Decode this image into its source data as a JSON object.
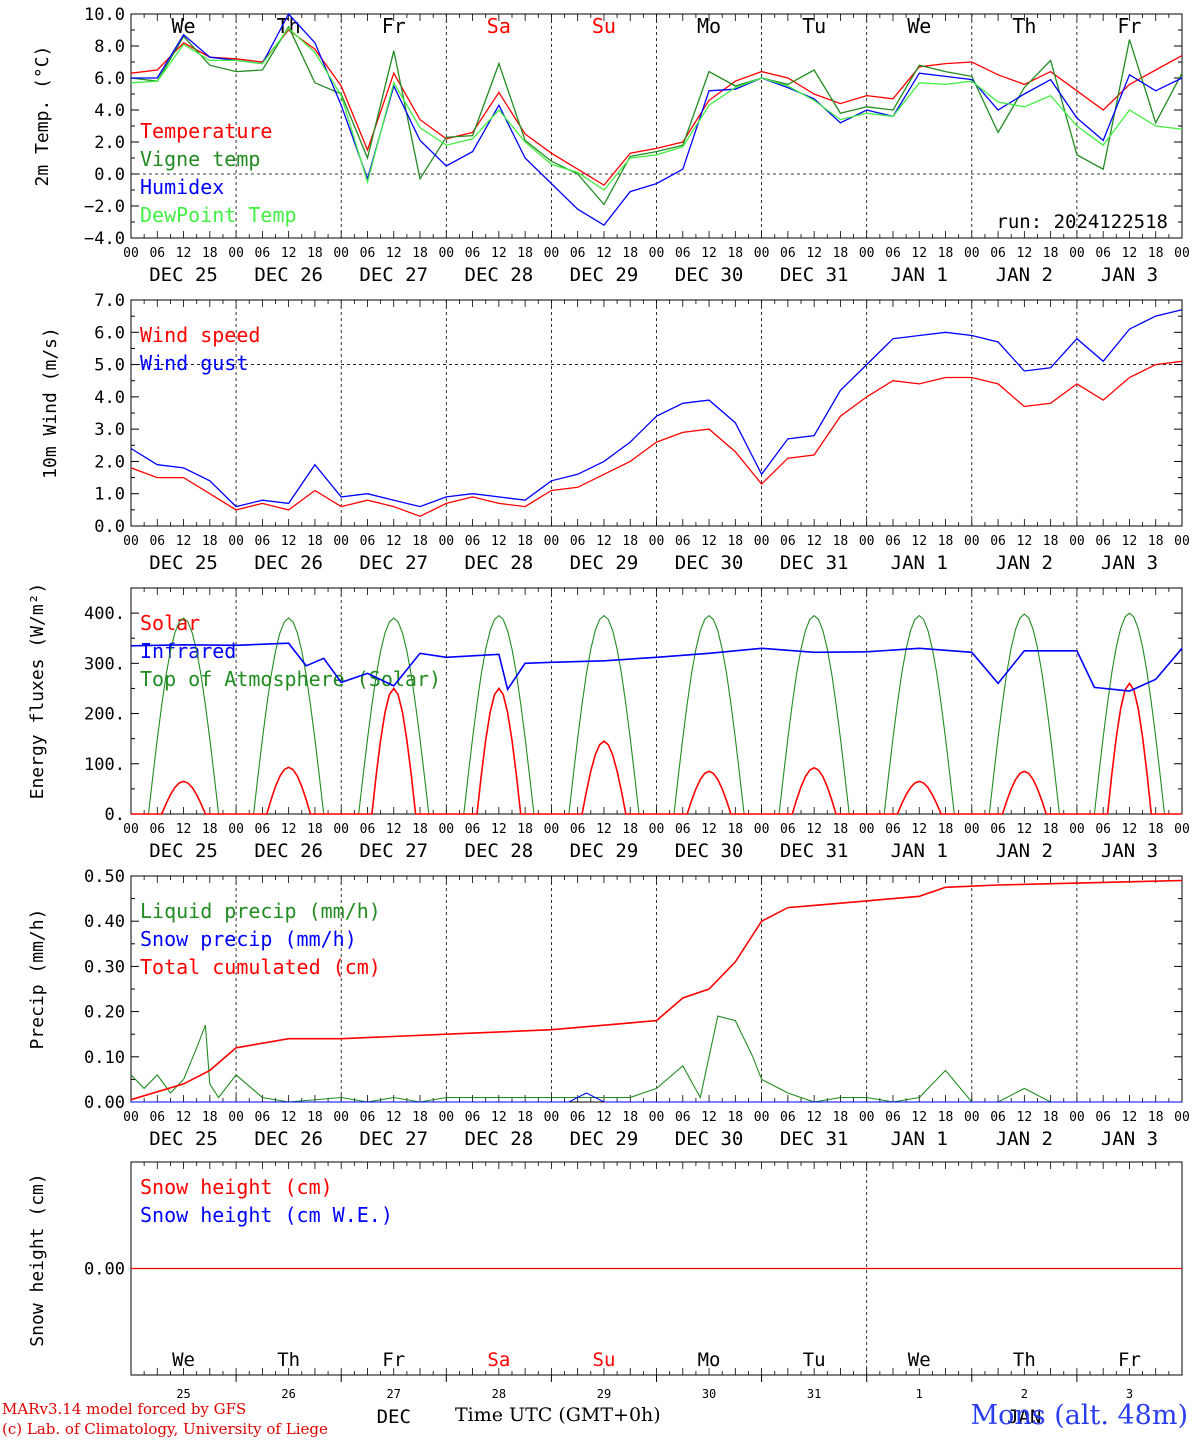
{
  "chart_data": [
    {
      "type": "line",
      "ylabel": "2m Temp. (°C)",
      "ylim": [
        -4,
        10
      ],
      "yticks": [
        "10.0",
        "8.0",
        "6.0",
        "4.0",
        "2.0",
        "0.0",
        "−2.0",
        "−4.0"
      ],
      "top_day_labels": [
        {
          "text": "We",
          "color": "#000000"
        },
        {
          "text": "Th",
          "color": "#000000"
        },
        {
          "text": "Fr",
          "color": "#000000"
        },
        {
          "text": "Sa",
          "color": "#ff0000"
        },
        {
          "text": "Su",
          "color": "#ff0000"
        },
        {
          "text": "Mo",
          "color": "#000000"
        },
        {
          "text": "Tu",
          "color": "#000000"
        },
        {
          "text": "We",
          "color": "#000000"
        },
        {
          "text": "Th",
          "color": "#000000"
        },
        {
          "text": "Fr",
          "color": "#000000"
        }
      ],
      "annotation": "run: 2024122518",
      "x_hours": [
        0,
        6,
        12,
        18,
        24,
        30,
        36,
        42,
        48,
        54,
        60,
        66,
        72,
        78,
        84,
        90,
        96,
        102,
        108,
        114,
        120,
        126,
        132,
        138,
        144,
        150,
        156,
        162,
        168,
        174,
        180,
        186,
        192,
        198,
        204,
        210,
        216,
        222,
        228,
        234,
        240
      ],
      "series": [
        {
          "name": "Temperature",
          "color": "#ff0000",
          "values": [
            6.3,
            6.5,
            8.2,
            7.3,
            7.2,
            7.0,
            9.0,
            7.8,
            5.5,
            1.5,
            6.3,
            3.4,
            2.2,
            2.6,
            5.1,
            2.5,
            1.3,
            0.3,
            -0.7,
            1.3,
            1.6,
            2.0,
            4.6,
            5.8,
            6.4,
            6.0,
            5.0,
            4.4,
            4.9,
            4.7,
            6.7,
            6.9,
            7.0,
            6.2,
            5.6,
            6.4,
            5.2,
            4.0,
            5.6,
            6.5,
            7.4
          ]
        },
        {
          "name": "Vigne temp",
          "color": "#228b22",
          "values": [
            6.0,
            5.8,
            8.6,
            6.8,
            6.4,
            6.5,
            9.2,
            5.7,
            5.0,
            1.0,
            7.7,
            -0.3,
            2.3,
            2.4,
            6.9,
            2.1,
            0.8,
            0.0,
            -1.9,
            1.1,
            1.4,
            1.8,
            6.4,
            5.5,
            6.0,
            5.6,
            6.5,
            3.8,
            4.2,
            4.0,
            6.8,
            6.4,
            6.1,
            2.6,
            5.4,
            7.1,
            1.2,
            0.3,
            8.4,
            3.2,
            6.3
          ]
        },
        {
          "name": "Humidex",
          "color": "#0000ff",
          "values": [
            6.0,
            6.0,
            8.7,
            7.3,
            7.1,
            6.9,
            10.0,
            8.2,
            4.3,
            -0.3,
            5.5,
            2.1,
            0.5,
            1.4,
            4.3,
            1.0,
            -0.6,
            -2.2,
            -3.2,
            -1.1,
            -0.6,
            0.3,
            5.2,
            5.3,
            6.0,
            5.4,
            4.7,
            3.2,
            4.0,
            3.6,
            6.3,
            6.1,
            5.9,
            4.0,
            5.0,
            5.9,
            3.5,
            2.1,
            6.2,
            5.2,
            6.0
          ]
        },
        {
          "name": "DewPoint Temp",
          "color": "#44ee44",
          "values": [
            5.7,
            5.8,
            8.1,
            7.1,
            7.1,
            6.9,
            9.1,
            7.6,
            4.9,
            -0.5,
            5.7,
            2.9,
            1.8,
            2.2,
            4.0,
            2.0,
            0.6,
            0.1,
            -1.0,
            1.0,
            1.2,
            1.7,
            4.3,
            5.4,
            6.0,
            5.5,
            4.6,
            3.4,
            3.8,
            3.6,
            5.7,
            5.6,
            5.8,
            4.5,
            4.2,
            4.9,
            3.0,
            1.8,
            4.0,
            3.0,
            2.8
          ]
        }
      ]
    },
    {
      "type": "line",
      "ylabel": "10m Wind (m/s)",
      "ylim": [
        0,
        7
      ],
      "yticks": [
        "7.0",
        "6.0",
        "5.0",
        "4.0",
        "3.0",
        "2.0",
        "1.0",
        "0.0"
      ],
      "x_hours": [
        0,
        6,
        12,
        18,
        24,
        30,
        36,
        42,
        48,
        54,
        60,
        66,
        72,
        78,
        84,
        90,
        96,
        102,
        108,
        114,
        120,
        126,
        132,
        138,
        144,
        150,
        156,
        162,
        168,
        174,
        180,
        186,
        192,
        198,
        204,
        210,
        216,
        222,
        228,
        234,
        240
      ],
      "series": [
        {
          "name": "Wind speed",
          "color": "#ff0000",
          "values": [
            1.8,
            1.5,
            1.5,
            1.0,
            0.5,
            0.7,
            0.5,
            1.1,
            0.6,
            0.8,
            0.6,
            0.3,
            0.7,
            0.9,
            0.7,
            0.6,
            1.1,
            1.2,
            1.6,
            2.0,
            2.6,
            2.9,
            3.0,
            2.3,
            1.3,
            2.1,
            2.2,
            3.4,
            4.0,
            4.5,
            4.4,
            4.6,
            4.6,
            4.4,
            3.7,
            3.8,
            4.4,
            3.9,
            4.6,
            5.0,
            5.1
          ]
        },
        {
          "name": "Wind gust",
          "color": "#0000ff",
          "values": [
            2.4,
            1.9,
            1.8,
            1.4,
            0.6,
            0.8,
            0.7,
            1.9,
            0.9,
            1.0,
            0.8,
            0.6,
            0.9,
            1.0,
            0.9,
            0.8,
            1.4,
            1.6,
            2.0,
            2.6,
            3.4,
            3.8,
            3.9,
            3.2,
            1.6,
            2.7,
            2.8,
            4.2,
            5.0,
            5.8,
            5.9,
            6.0,
            5.9,
            5.7,
            4.8,
            4.9,
            5.8,
            5.1,
            6.1,
            6.5,
            6.7
          ]
        }
      ]
    },
    {
      "type": "line",
      "ylabel": "Energy fluxes (W/m²)",
      "ylim": [
        0,
        400
      ],
      "yticks": [
        "400.",
        "300.",
        "200.",
        "100.",
        "0."
      ],
      "series": [
        {
          "name": "Solar",
          "color": "#ff0000",
          "daily_peak_values": [
            65,
            93,
            250,
            250,
            145,
            85,
            92,
            65,
            85,
            260
          ]
        },
        {
          "name": "Infrared",
          "color": "#0000ff",
          "x_hours": [
            0,
            12,
            24,
            36,
            40,
            44,
            48,
            54,
            60,
            66,
            72,
            84,
            86,
            90,
            96,
            108,
            120,
            132,
            144,
            156,
            168,
            180,
            192,
            198,
            204,
            216,
            220,
            228,
            234,
            240
          ],
          "values": [
            335,
            337,
            336,
            340,
            295,
            310,
            262,
            280,
            255,
            320,
            312,
            318,
            248,
            300,
            302,
            305,
            312,
            320,
            330,
            322,
            323,
            330,
            322,
            260,
            325,
            325,
            252,
            245,
            268,
            330
          ]
        },
        {
          "name": "Top of Atmosphere (Solar)",
          "color": "#228b22",
          "daily_peak_values": [
            390,
            390,
            390,
            395,
            395,
            395,
            395,
            395,
            398,
            400
          ]
        }
      ]
    },
    {
      "type": "line",
      "ylabel": "Precip (mm/h)",
      "ylim": [
        0,
        0.5
      ],
      "yticks": [
        "0.50",
        "0.40",
        "0.30",
        "0.20",
        "0.10",
        "0.00"
      ],
      "series": [
        {
          "name": "Liquid precip (mm/h)",
          "color": "#228b22",
          "x_hours": [
            0,
            3,
            6,
            9,
            12,
            15,
            17,
            18,
            20,
            24,
            30,
            36,
            48,
            54,
            60,
            66,
            72,
            84,
            90,
            96,
            102,
            108,
            114,
            120,
            126,
            130,
            134,
            138,
            142,
            144,
            150,
            156,
            162,
            168,
            174,
            180,
            186,
            192,
            198,
            204,
            210,
            216,
            240
          ],
          "values": [
            0.06,
            0.03,
            0.06,
            0.02,
            0.05,
            0.12,
            0.17,
            0.04,
            0.01,
            0.06,
            0.01,
            0.0,
            0.01,
            0.0,
            0.01,
            0.0,
            0.01,
            0.01,
            0.01,
            0.01,
            0.01,
            0.01,
            0.01,
            0.03,
            0.08,
            0.01,
            0.19,
            0.18,
            0.1,
            0.05,
            0.02,
            0.0,
            0.01,
            0.01,
            0.0,
            0.01,
            0.07,
            0.0,
            0.0,
            0.03,
            0.0,
            0.0,
            0.0
          ]
        },
        {
          "name": "Snow precip (mm/h)",
          "color": "#0000ff",
          "x_hours": [
            0,
            100,
            104,
            108,
            240
          ],
          "values": [
            0.0,
            0.0,
            0.02,
            0.0,
            0.0
          ]
        },
        {
          "name": "Total cumulated (cm)",
          "color": "#ff0000",
          "x_hours": [
            0,
            12,
            18,
            24,
            36,
            48,
            72,
            96,
            108,
            120,
            126,
            132,
            138,
            144,
            150,
            156,
            168,
            180,
            186,
            198,
            240
          ],
          "values": [
            0.005,
            0.04,
            0.07,
            0.12,
            0.14,
            0.14,
            0.15,
            0.16,
            0.17,
            0.18,
            0.23,
            0.25,
            0.31,
            0.4,
            0.43,
            0.435,
            0.445,
            0.455,
            0.475,
            0.48,
            0.49
          ]
        }
      ]
    },
    {
      "type": "line",
      "ylabel": "Snow height (cm)",
      "yticks": [
        "0.00"
      ],
      "series": [
        {
          "name": "Snow height (cm)",
          "color": "#ff0000",
          "values": [
            0,
            0
          ]
        },
        {
          "name": "Snow height (cm W.E.)",
          "color": "#0000ff",
          "values": [
            0,
            0
          ]
        }
      ],
      "day_labels": [
        {
          "text": "We",
          "color": "#000000",
          "day": "25"
        },
        {
          "text": "Th",
          "color": "#000000",
          "day": "26"
        },
        {
          "text": "Fr",
          "color": "#000000",
          "day": "27"
        },
        {
          "text": "Sa",
          "color": "#ff0000",
          "day": "28"
        },
        {
          "text": "Su",
          "color": "#ff0000",
          "day": "29"
        },
        {
          "text": "Mo",
          "color": "#000000",
          "day": "30"
        },
        {
          "text": "Tu",
          "color": "#000000",
          "day": "31"
        },
        {
          "text": "We",
          "color": "#000000",
          "day": "1"
        },
        {
          "text": "Th",
          "color": "#000000",
          "day": "2"
        },
        {
          "text": "Fr",
          "color": "#000000",
          "day": "3"
        }
      ],
      "month_labels": [
        "DEC",
        "JAN"
      ]
    }
  ],
  "x_axis": {
    "hour_ticks": [
      "00",
      "06",
      "12",
      "18"
    ],
    "final_tick": "00",
    "date_labels": [
      "DEC 25",
      "DEC 26",
      "DEC 27",
      "DEC 28",
      "DEC 29",
      "DEC 30",
      "DEC 31",
      "JAN  1",
      "JAN  2",
      "JAN  3"
    ],
    "title": "Time UTC (GMT+0h)"
  },
  "footer": {
    "line1": "MARv3.14 model forced by GFS",
    "line2": "(c) Lab. of Climatology, University of Liege",
    "station": "Mons (alt. 48m)"
  }
}
